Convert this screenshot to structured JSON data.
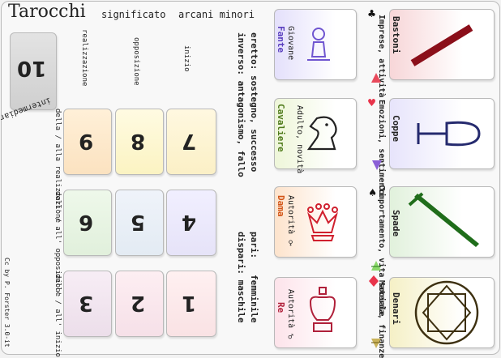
{
  "header": {
    "title": "Tarocchi",
    "subtitle_a": "significato",
    "subtitle_b": "arcani minori"
  },
  "suits": [
    {
      "name": "Bastoni",
      "meaning": "Imprese, attività"
    },
    {
      "name": "Coppe",
      "meaning": "Emozioni, sentimenti"
    },
    {
      "name": "Spade",
      "meaning": "Comportamento, vita sociale"
    },
    {
      "name": "Denari",
      "meaning": "Materia, finanze"
    }
  ],
  "courts": [
    {
      "name": "Fante",
      "meaning": "Giovane"
    },
    {
      "name": "Cavaliere",
      "meaning": "Adulto, novità"
    },
    {
      "name": "Dama",
      "meaning": "Autorità ♀"
    },
    {
      "name": "Re",
      "meaning": "Autorità ♂"
    }
  ],
  "notes": {
    "line1": "eretto: sostegno, successo",
    "line2": "inverso: antagonismo, fallo",
    "line3": "pari:   femminile",
    "line4": "dispari: maschile"
  },
  "column_heads": [
    "inizio",
    "opposizione",
    "realizzazione"
  ],
  "number_cards": [
    {
      "value": "7",
      "color": "#fbf3cf"
    },
    {
      "value": "8",
      "color": "#fbf5c8"
    },
    {
      "value": "9",
      "color": "#fbe6c4"
    },
    {
      "value": "4",
      "color": "#ebe8f9"
    },
    {
      "value": "5",
      "color": "#e9eef6"
    },
    {
      "value": "6",
      "color": "#e6f3e2"
    },
    {
      "value": "1",
      "color": "#fae9ea"
    },
    {
      "value": "2",
      "color": "#f8e6ec"
    },
    {
      "value": "3",
      "color": "#f0e3ee"
    }
  ],
  "row_labels": [
    "della / alla realizzazione",
    "dell' / all' opposizione",
    "dell' / all' inizio"
  ],
  "ten": {
    "value": "10",
    "label": "intermediario"
  },
  "credit": "Cc by P. Forster 3.0-it",
  "colors": {
    "bastoni": "#8b0f1a",
    "coppe": "#252a6e",
    "spade": "#1f6d1a",
    "denari": "#3d3010"
  }
}
